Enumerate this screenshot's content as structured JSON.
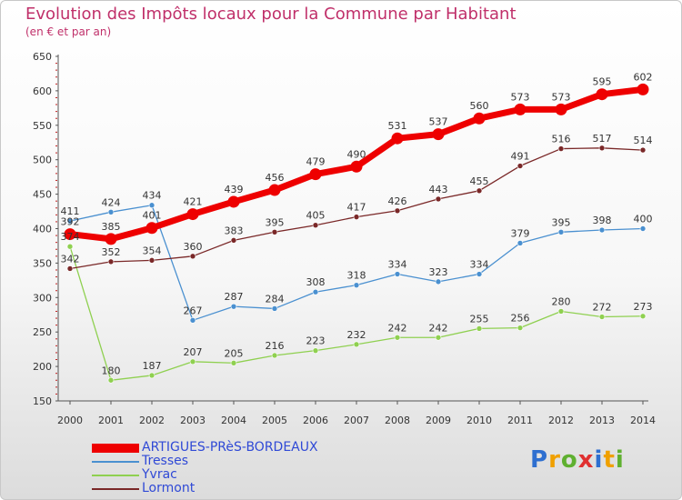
{
  "header": {
    "title": "Evolution des Impôts locaux pour la Commune par Habitant",
    "subtitle": "(en € et par an)"
  },
  "logo": {
    "letters": [
      "P",
      "r",
      "o",
      "x",
      "i",
      "t",
      "i"
    ],
    "colors": [
      "#2e6fd0",
      "#f0a000",
      "#5fb030",
      "#e03030",
      "#2e6fd0",
      "#f0a000",
      "#5fb030"
    ]
  },
  "chart_data": {
    "type": "line",
    "title": "Evolution des Impôts locaux pour la Commune par Habitant",
    "subtitle": "(en € et par an)",
    "xlabel": "",
    "ylabel": "",
    "x": [
      "2000",
      "2001",
      "2002",
      "2003",
      "2004",
      "2005",
      "2006",
      "2007",
      "2008",
      "2009",
      "2010",
      "2011",
      "2012",
      "2013",
      "2014"
    ],
    "ylim": [
      150,
      650
    ],
    "yticks": [
      150,
      200,
      250,
      300,
      350,
      400,
      450,
      500,
      550,
      600,
      650
    ],
    "grid": false,
    "legend_position": "bottom-left",
    "series": [
      {
        "name": "ARTIGUES-PRèS-BORDEAUX",
        "color": "#ee0000",
        "emphasis": true,
        "values": [
          392,
          385,
          401,
          421,
          439,
          456,
          479,
          490,
          531,
          537,
          560,
          573,
          573,
          595,
          602
        ]
      },
      {
        "name": "Tresses",
        "color": "#4a90d0",
        "emphasis": false,
        "values": [
          411,
          424,
          434,
          267,
          287,
          284,
          308,
          318,
          334,
          323,
          334,
          379,
          395,
          398,
          400
        ]
      },
      {
        "name": "Yvrac",
        "color": "#8fd050",
        "emphasis": false,
        "values": [
          374,
          180,
          187,
          207,
          205,
          216,
          223,
          232,
          242,
          242,
          255,
          256,
          280,
          272,
          273
        ]
      },
      {
        "name": "Lormont",
        "color": "#7a2828",
        "emphasis": false,
        "values": [
          342,
          352,
          354,
          360,
          383,
          395,
          405,
          417,
          426,
          443,
          455,
          491,
          516,
          517,
          514
        ]
      }
    ]
  }
}
